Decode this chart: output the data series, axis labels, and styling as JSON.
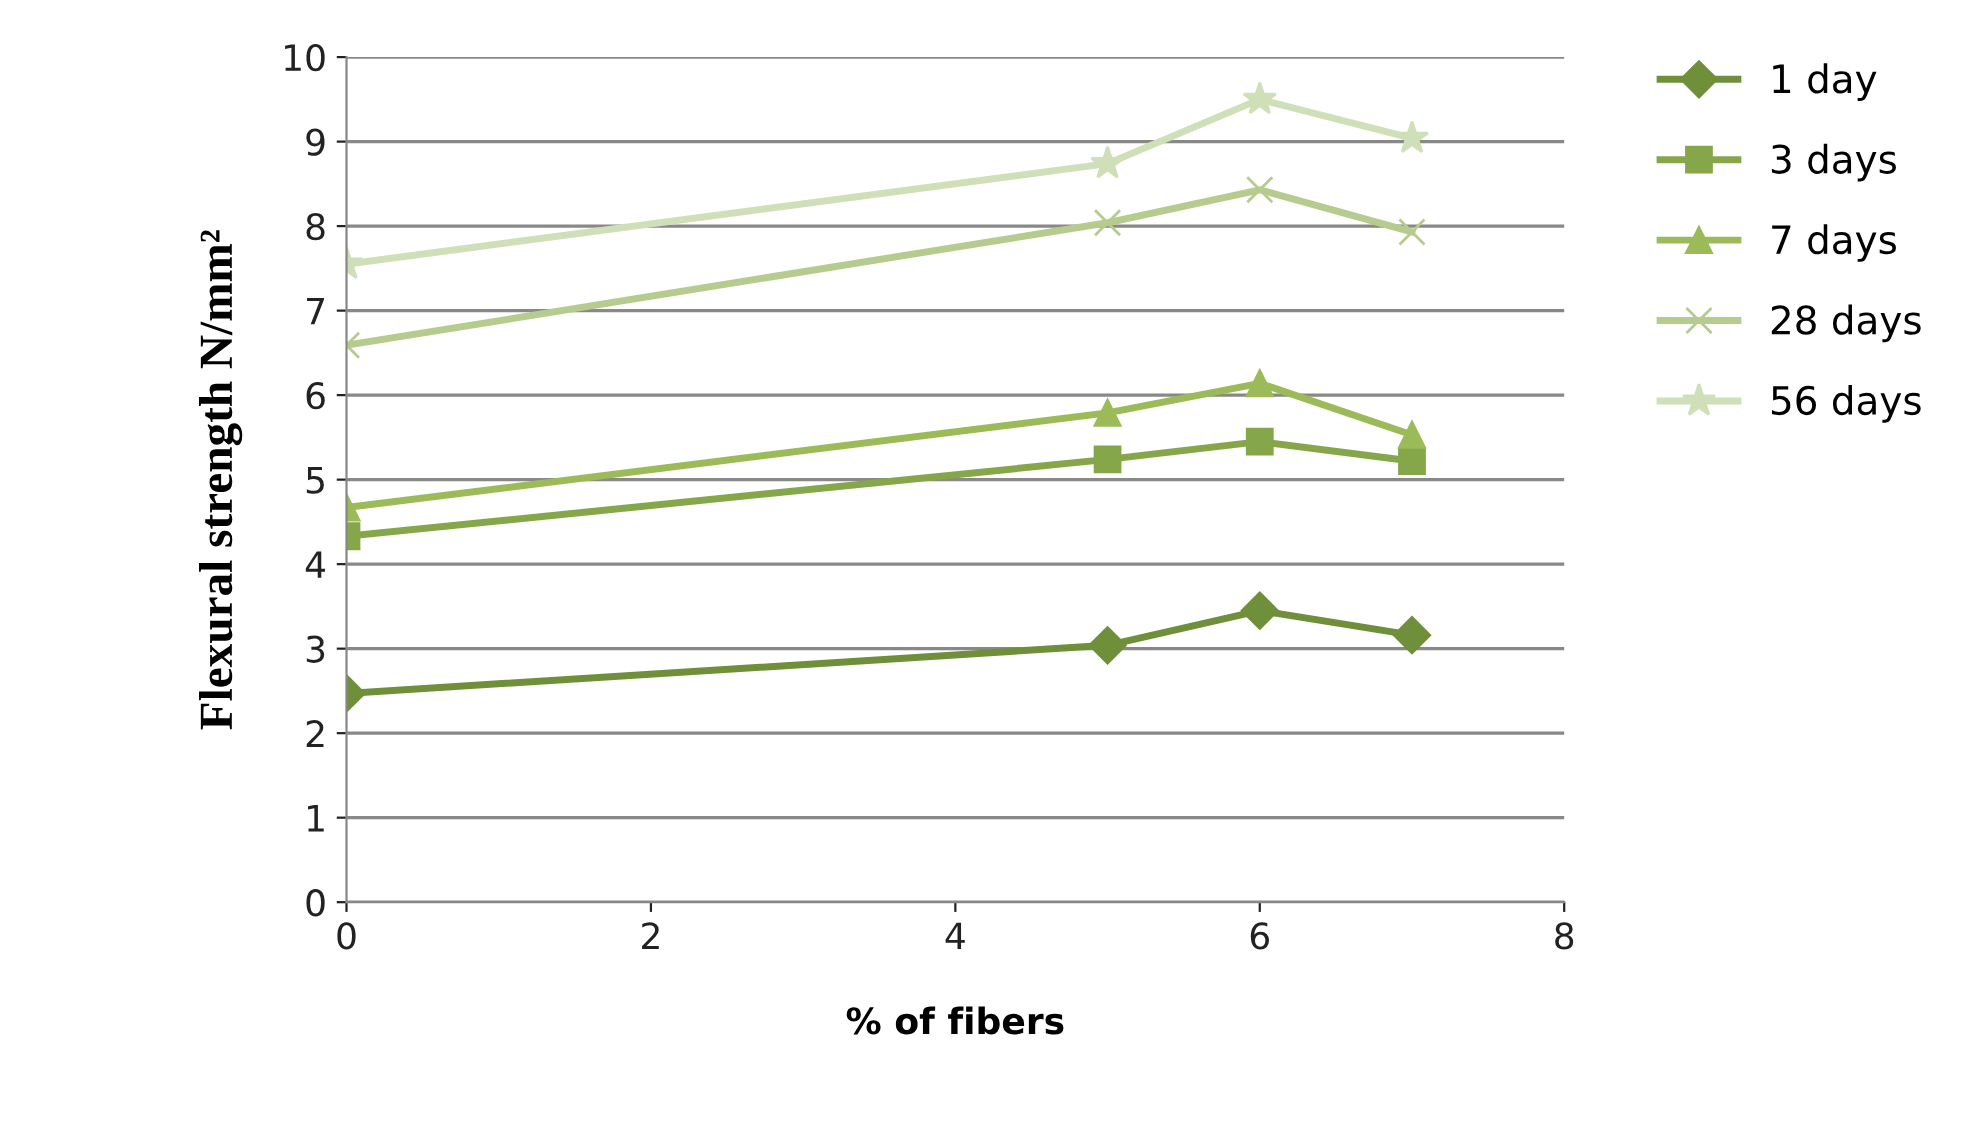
{
  "chart_data": {
    "type": "line",
    "xlabel": "% of fibers",
    "ylabel": "Flexural strength N/mm²",
    "x": [
      0,
      5,
      6,
      7
    ],
    "series": [
      {
        "name": "1 day",
        "color": "#6f8f3a",
        "marker": "diamond",
        "values": [
          2.47,
          3.04,
          3.45,
          3.16
        ]
      },
      {
        "name": "3 days",
        "color": "#86a64a",
        "marker": "square",
        "values": [
          4.33,
          5.24,
          5.45,
          5.22
        ]
      },
      {
        "name": "7 days",
        "color": "#9bbb59",
        "marker": "triangle",
        "values": [
          4.67,
          5.79,
          6.14,
          5.53
        ]
      },
      {
        "name": "28 days",
        "color": "#b5cc8e",
        "marker": "cross",
        "values": [
          6.59,
          8.04,
          8.43,
          7.93
        ]
      },
      {
        "name": "56 days",
        "color": "#cfdfb8",
        "marker": "star",
        "values": [
          7.55,
          8.74,
          9.5,
          9.04
        ]
      }
    ],
    "xlim": [
      0,
      8
    ],
    "xticks": [
      0,
      2,
      4,
      6,
      8
    ],
    "ylim": [
      0,
      10
    ],
    "yticks": [
      0,
      1,
      2,
      3,
      4,
      5,
      6,
      7,
      8,
      9,
      10
    ],
    "grid": "y",
    "legend": "right",
    "line_style": "solid"
  }
}
